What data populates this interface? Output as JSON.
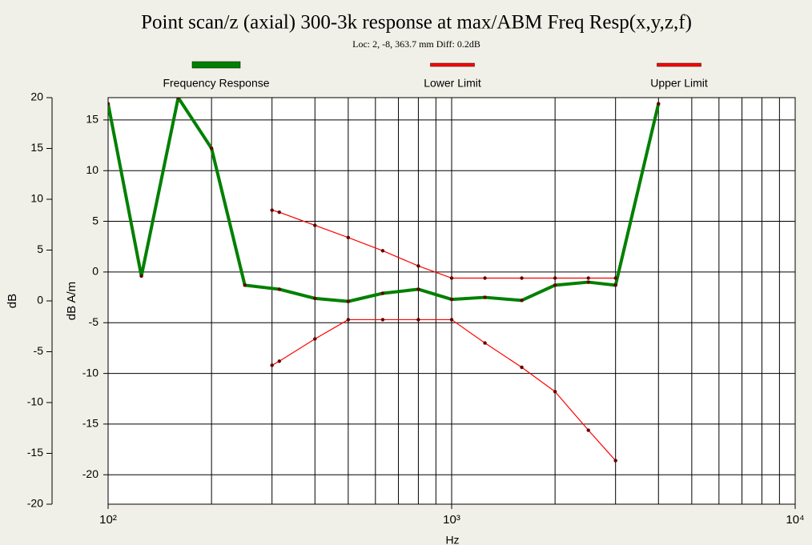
{
  "chart_data": {
    "type": "line",
    "title": "Point scan/z (axial) 300-3k response at max/ABM Freq Resp(x,y,z,f)",
    "subtitle": "Loc: 2, -8, 363.7 mm Diff: 0.2dB",
    "xlabel": "Hz",
    "ylabel": "dB",
    "y2label": "dB A/m",
    "xscale": "log",
    "xlim": [
      100,
      10000
    ],
    "xticks": [
      {
        "value": 100,
        "label": "10²"
      },
      {
        "value": 1000,
        "label": "10³"
      },
      {
        "value": 10000,
        "label": "10⁴"
      }
    ],
    "xminorticks": [
      200,
      300,
      400,
      500,
      600,
      700,
      800,
      900,
      2000,
      3000,
      4000,
      5000,
      6000,
      7000,
      8000,
      9000
    ],
    "ylim": [
      -20,
      20
    ],
    "yticks": [
      -20,
      -15,
      -10,
      -5,
      0,
      5,
      10,
      15,
      20
    ],
    "y2lim": [
      -22.9,
      17.2
    ],
    "y2ticks": [
      -20,
      -15,
      -10,
      -5,
      0,
      5,
      10,
      15
    ],
    "grid": true,
    "legend": "top",
    "series": [
      {
        "name": "Frequency Response",
        "color": "#008000",
        "axis": "y2",
        "x": [
          100,
          125,
          160,
          200,
          250,
          315,
          400,
          500,
          630,
          800,
          1000,
          1250,
          1600,
          2000,
          2500,
          3000,
          4000
        ],
        "values": [
          16.6,
          -0.4,
          17.2,
          12.2,
          -1.3,
          -1.7,
          -2.6,
          -2.9,
          -2.1,
          -1.7,
          -2.7,
          -2.5,
          -2.8,
          -1.3,
          -1.0,
          -1.3,
          16.6
        ]
      },
      {
        "name": "Lower Limit",
        "color": "#ff0000",
        "axis": "y2",
        "x": [
          300,
          315,
          400,
          500,
          630,
          800,
          1000,
          1250,
          1600,
          2000,
          2500,
          3000
        ],
        "values": [
          -9.2,
          -8.8,
          -6.6,
          -4.7,
          -4.7,
          -4.7,
          -4.7,
          -7.0,
          -9.4,
          -11.8,
          -15.6,
          -18.6
        ]
      },
      {
        "name": "Upper Limit",
        "color": "#ff0000",
        "axis": "y2",
        "x": [
          300,
          315,
          400,
          500,
          630,
          800,
          1000,
          1250,
          1600,
          2000,
          2500,
          3000
        ],
        "values": [
          6.1,
          5.9,
          4.6,
          3.4,
          2.1,
          0.6,
          -0.6,
          -0.6,
          -0.6,
          -0.6,
          -0.6,
          -0.6
        ]
      }
    ]
  }
}
